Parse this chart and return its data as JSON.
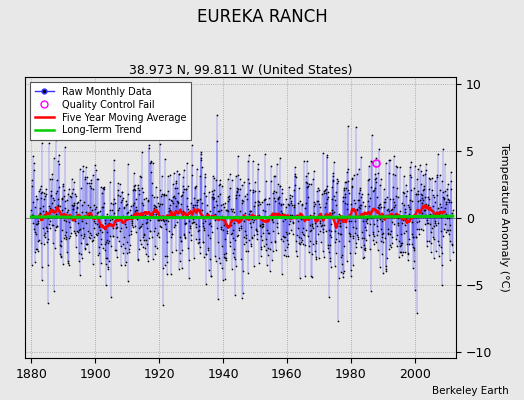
{
  "title": "EUREKA RANCH",
  "subtitle": "38.973 N, 99.811 W (United States)",
  "ylabel": "Temperature Anomaly (°C)",
  "xlabel_ticks": [
    1880,
    1900,
    1920,
    1940,
    1960,
    1980,
    2000
  ],
  "ylim": [
    -10.5,
    10.5
  ],
  "yticks": [
    -10,
    -5,
    0,
    5,
    10
  ],
  "xlim": [
    1878,
    2013
  ],
  "start_year": 1880,
  "end_year": 2011,
  "seed": 17,
  "background_color": "#e8e8e8",
  "plot_bg_color": "#e8e8e8",
  "raw_color": "#3333ff",
  "raw_dot_color": "#000000",
  "ma_color": "#ff0000",
  "trend_color": "#00cc00",
  "qc_color": "#ff00ff",
  "qc_x": 1988,
  "qc_y": 4.1,
  "legend_loc": "upper left",
  "attribution": "Berkeley Earth",
  "title_fontsize": 12,
  "subtitle_fontsize": 9,
  "label_fontsize": 8,
  "tick_fontsize": 9
}
